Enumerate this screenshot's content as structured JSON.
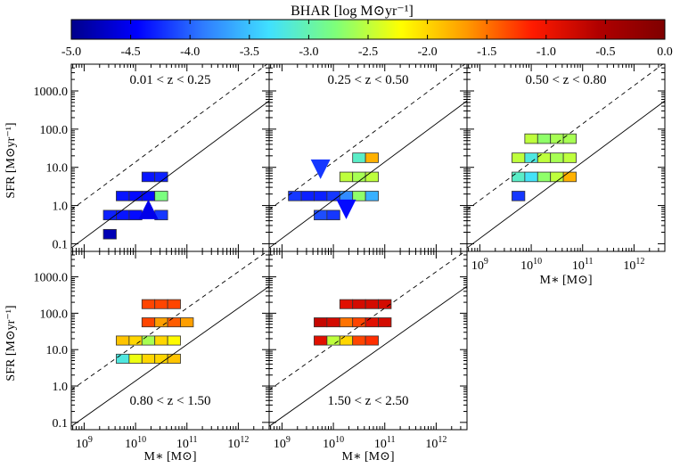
{
  "colorbar": {
    "title": "BHAR [log M⊙yr⁻¹]",
    "ticks": [
      "-5.0",
      "-4.5",
      "-4.0",
      "-3.5",
      "-3.0",
      "-2.5",
      "-2.0",
      "-1.5",
      "-1.0",
      "-0.5",
      "0.0"
    ],
    "range": [
      -5.0,
      0.0
    ],
    "stops": [
      "#00008b",
      "#0000ff",
      "#2f7cff",
      "#40e0ff",
      "#7dff7a",
      "#ffff00",
      "#ff9900",
      "#ff1a00",
      "#b00000",
      "#7f0000"
    ]
  },
  "axes": {
    "ylabel": "SFR [M⊙yr⁻¹]",
    "xlabel": "M∗ [M⊙]",
    "yticks": [
      "0.1",
      "1.0",
      "10.0",
      "100.0",
      "1000.0"
    ],
    "xticks": [
      {
        "base": "10",
        "exp": "9"
      },
      {
        "base": "10",
        "exp": "10"
      },
      {
        "base": "10",
        "exp": "11"
      },
      {
        "base": "10",
        "exp": "12"
      }
    ]
  },
  "chart_data": {
    "type": "heatmap",
    "x_range_log": [
      8.75,
      12.6
    ],
    "y_range_log": [
      -1.2,
      3.7
    ],
    "grid_step": 0.25,
    "panels": [
      {
        "label": "0.01 < z < 0.25",
        "cells": [
          {
            "logM": 9.5,
            "logSFR": -0.75,
            "bhar": -4.8
          },
          {
            "logM": 9.5,
            "logSFR": -0.25,
            "bhar": -4.3
          },
          {
            "logM": 9.75,
            "logSFR": -0.25,
            "bhar": -4.35
          },
          {
            "logM": 10.0,
            "logSFR": -0.25,
            "bhar": -4.4
          },
          {
            "logM": 9.75,
            "logSFR": 0.25,
            "bhar": -4.35
          },
          {
            "logM": 10.0,
            "logSFR": 0.25,
            "bhar": -4.4
          },
          {
            "logM": 10.25,
            "logSFR": 0.25,
            "bhar": -4.4
          },
          {
            "logM": 10.5,
            "logSFR": 0.25,
            "bhar": -2.8
          },
          {
            "logM": 10.25,
            "logSFR": 0.75,
            "bhar": -4.35
          },
          {
            "logM": 10.5,
            "logSFR": 0.75,
            "bhar": -4.3
          },
          {
            "logM": 10.5,
            "logSFR": -0.25,
            "bhar": -4.2
          }
        ],
        "markers": [
          {
            "logM": 10.25,
            "logSFR": -0.1,
            "type": "upper-limit-triangle",
            "bhar": -4.55
          }
        ]
      },
      {
        "label": "0.25 < z < 0.50",
        "cells": [
          {
            "logM": 9.25,
            "logSFR": 0.25,
            "bhar": -4.2
          },
          {
            "logM": 9.5,
            "logSFR": 0.25,
            "bhar": -4.3
          },
          {
            "logM": 9.75,
            "logSFR": 0.25,
            "bhar": -4.3
          },
          {
            "logM": 10.0,
            "logSFR": 0.25,
            "bhar": -4.2
          },
          {
            "logM": 9.75,
            "logSFR": -0.25,
            "bhar": -4.1
          },
          {
            "logM": 10.0,
            "logSFR": -0.25,
            "bhar": -4.2
          },
          {
            "logM": 10.25,
            "logSFR": 0.25,
            "bhar": -3.8
          },
          {
            "logM": 10.25,
            "logSFR": 0.75,
            "bhar": -2.5
          },
          {
            "logM": 10.5,
            "logSFR": 0.75,
            "bhar": -2.6
          },
          {
            "logM": 10.75,
            "logSFR": 0.75,
            "bhar": -2.5
          },
          {
            "logM": 10.5,
            "logSFR": 0.25,
            "bhar": -2.7
          },
          {
            "logM": 10.75,
            "logSFR": 0.25,
            "bhar": -3.6
          },
          {
            "logM": 10.5,
            "logSFR": 1.25,
            "bhar": -3.1
          },
          {
            "logM": 10.75,
            "logSFR": 1.25,
            "bhar": -1.8
          }
        ],
        "markers": [
          {
            "logM": 9.75,
            "logSFR": 0.95,
            "type": "upper-limit-triangle",
            "bhar": -4.2
          },
          {
            "logM": 10.25,
            "logSFR": -0.1,
            "type": "upper-limit-triangle",
            "bhar": -4.4
          }
        ]
      },
      {
        "label": "0.50 < z < 0.80",
        "cells": [
          {
            "logM": 9.75,
            "logSFR": 0.25,
            "bhar": -4.2
          },
          {
            "logM": 9.75,
            "logSFR": 0.75,
            "bhar": -3.1
          },
          {
            "logM": 9.75,
            "logSFR": 1.25,
            "bhar": -2.5
          },
          {
            "logM": 10.0,
            "logSFR": 0.75,
            "bhar": -3.3
          },
          {
            "logM": 10.25,
            "logSFR": 0.75,
            "bhar": -2.7
          },
          {
            "logM": 10.5,
            "logSFR": 0.75,
            "bhar": -2.5
          },
          {
            "logM": 10.75,
            "logSFR": 0.75,
            "bhar": -1.8
          },
          {
            "logM": 10.0,
            "logSFR": 1.25,
            "bhar": -3.2
          },
          {
            "logM": 10.25,
            "logSFR": 1.25,
            "bhar": -2.5
          },
          {
            "logM": 10.5,
            "logSFR": 1.25,
            "bhar": -2.6
          },
          {
            "logM": 10.75,
            "logSFR": 1.25,
            "bhar": -2.5
          },
          {
            "logM": 10.0,
            "logSFR": 1.75,
            "bhar": -2.5
          },
          {
            "logM": 10.25,
            "logSFR": 1.75,
            "bhar": -2.7
          },
          {
            "logM": 10.5,
            "logSFR": 1.75,
            "bhar": -2.6
          },
          {
            "logM": 10.75,
            "logSFR": 1.75,
            "bhar": -2.6
          }
        ],
        "markers": []
      },
      {
        "label": "0.80 < z < 1.50",
        "cells": [
          {
            "logM": 9.75,
            "logSFR": 0.75,
            "bhar": -3.2
          },
          {
            "logM": 10.0,
            "logSFR": 0.75,
            "bhar": -2.3
          },
          {
            "logM": 10.25,
            "logSFR": 0.75,
            "bhar": -2.0
          },
          {
            "logM": 10.5,
            "logSFR": 0.75,
            "bhar": -2.0
          },
          {
            "logM": 10.75,
            "logSFR": 0.75,
            "bhar": -1.9
          },
          {
            "logM": 9.75,
            "logSFR": 1.25,
            "bhar": -1.9
          },
          {
            "logM": 10.0,
            "logSFR": 1.25,
            "bhar": -2.0
          },
          {
            "logM": 10.25,
            "logSFR": 1.25,
            "bhar": -2.6
          },
          {
            "logM": 10.5,
            "logSFR": 1.25,
            "bhar": -2.0
          },
          {
            "logM": 10.75,
            "logSFR": 1.25,
            "bhar": -2.2
          },
          {
            "logM": 10.25,
            "logSFR": 1.75,
            "bhar": -1.3
          },
          {
            "logM": 10.5,
            "logSFR": 1.75,
            "bhar": -1.7
          },
          {
            "logM": 10.75,
            "logSFR": 1.75,
            "bhar": -1.4
          },
          {
            "logM": 11.0,
            "logSFR": 1.75,
            "bhar": -1.7
          },
          {
            "logM": 10.25,
            "logSFR": 2.25,
            "bhar": -1.3
          },
          {
            "logM": 10.5,
            "logSFR": 2.25,
            "bhar": -1.3
          },
          {
            "logM": 10.75,
            "logSFR": 2.25,
            "bhar": -1.3
          }
        ],
        "markers": []
      },
      {
        "label": "1.50 < z < 2.50",
        "cells": [
          {
            "logM": 9.75,
            "logSFR": 1.25,
            "bhar": -0.9
          },
          {
            "logM": 10.0,
            "logSFR": 1.25,
            "bhar": -2.5
          },
          {
            "logM": 10.25,
            "logSFR": 1.25,
            "bhar": -2.0
          },
          {
            "logM": 10.5,
            "logSFR": 1.25,
            "bhar": -1.3
          },
          {
            "logM": 10.75,
            "logSFR": 1.25,
            "bhar": -1.2
          },
          {
            "logM": 9.75,
            "logSFR": 1.75,
            "bhar": -0.7
          },
          {
            "logM": 10.0,
            "logSFR": 1.75,
            "bhar": -0.8
          },
          {
            "logM": 10.25,
            "logSFR": 1.75,
            "bhar": -1.5
          },
          {
            "logM": 10.5,
            "logSFR": 1.75,
            "bhar": -1.3
          },
          {
            "logM": 10.75,
            "logSFR": 1.75,
            "bhar": -0.9
          },
          {
            "logM": 11.0,
            "logSFR": 1.75,
            "bhar": -0.8
          },
          {
            "logM": 10.25,
            "logSFR": 2.25,
            "bhar": -0.9
          },
          {
            "logM": 10.5,
            "logSFR": 2.25,
            "bhar": -0.8
          },
          {
            "logM": 10.75,
            "logSFR": 2.25,
            "bhar": -0.8
          },
          {
            "logM": 11.0,
            "logSFR": 2.25,
            "bhar": -0.8
          }
        ],
        "markers": []
      }
    ],
    "lines": [
      {
        "style": "solid",
        "log_sfr_at_logM9": -0.86,
        "slope": 1.0
      },
      {
        "style": "dashed",
        "log_sfr_at_logM9": 0.14,
        "slope": 1.0
      }
    ]
  }
}
